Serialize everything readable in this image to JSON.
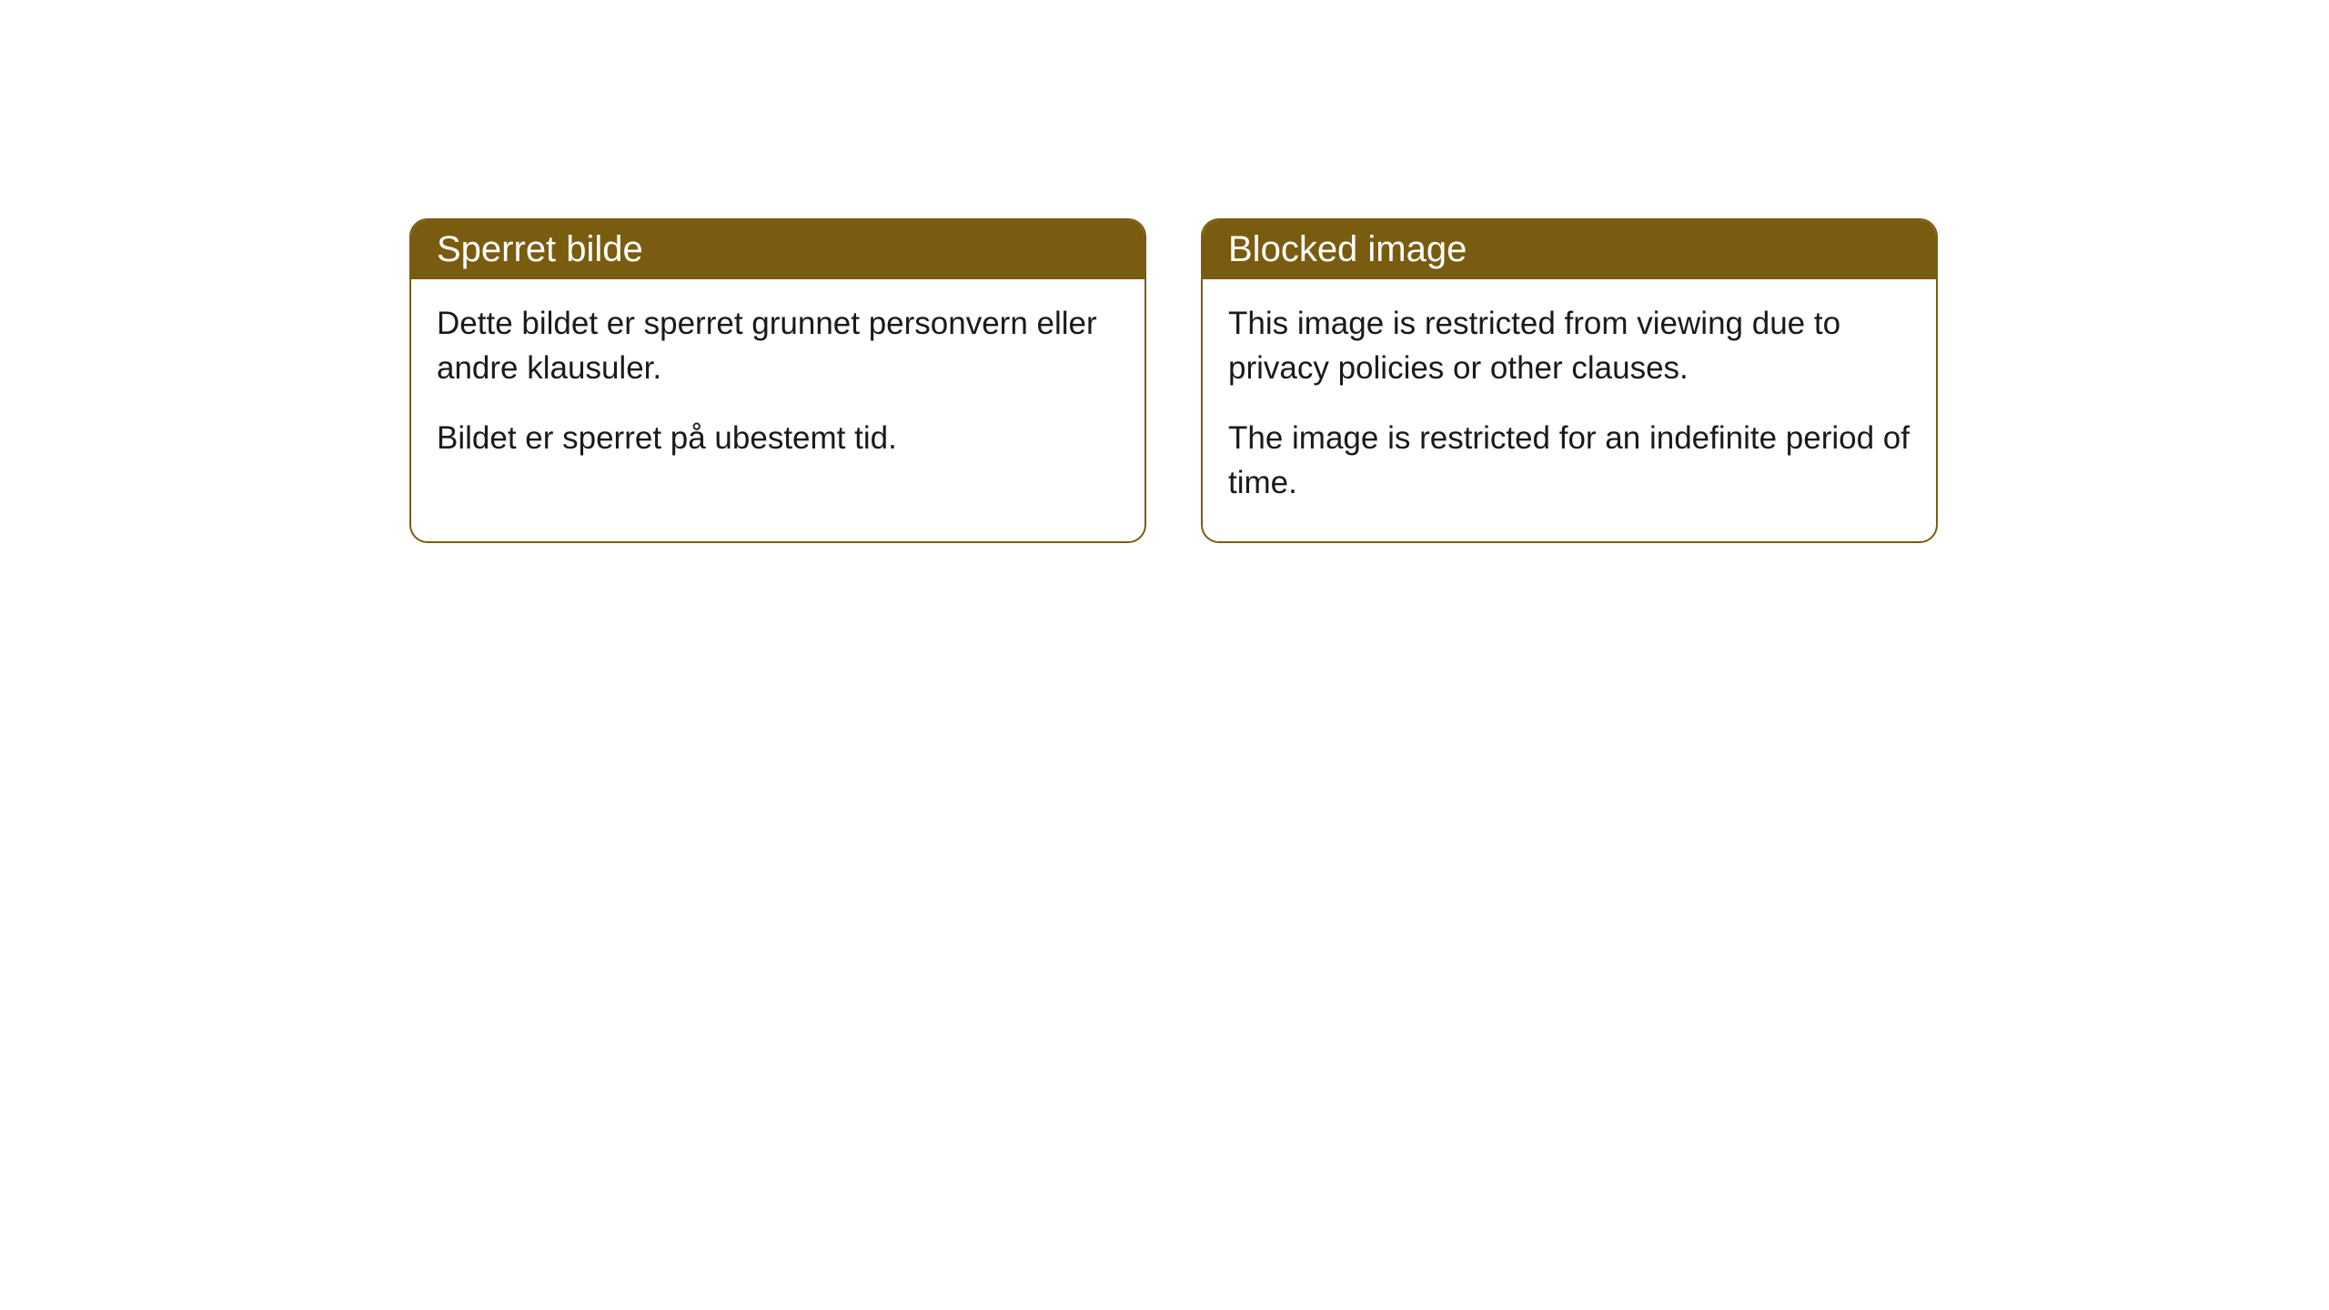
{
  "cards": [
    {
      "title": "Sperret bilde",
      "paragraph1": "Dette bildet er sperret grunnet personvern eller andre klausuler.",
      "paragraph2": "Bildet er sperret på ubestemt tid."
    },
    {
      "title": "Blocked image",
      "paragraph1": "This image is restricted from viewing due to privacy policies or other clauses.",
      "paragraph2": "The image is restricted for an indefinite period of time."
    }
  ],
  "styling": {
    "header_background": "#7a5c10",
    "header_text_color": "#ffffff",
    "border_color": "#7a5c10",
    "body_background": "#ffffff",
    "body_text_color": "#1a1a1a",
    "border_radius": 20,
    "title_fontsize": 40,
    "body_fontsize": 35
  }
}
